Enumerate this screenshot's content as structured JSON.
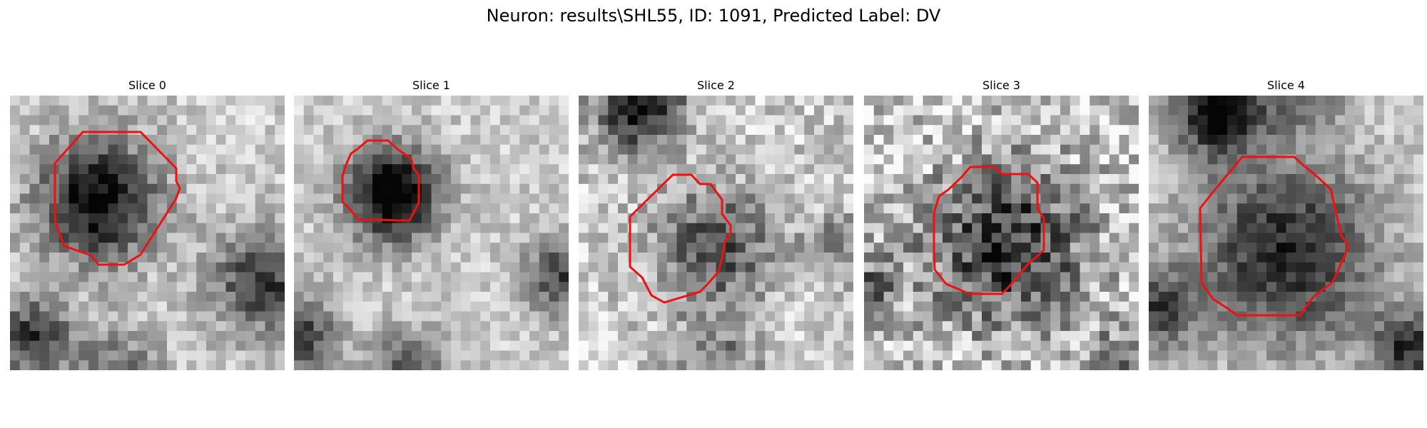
{
  "figure": {
    "suptitle": "Neuron: results\\SHL55, ID: 1091, Predicted Label: DV",
    "contour_color": "#ee1111",
    "panels": [
      {
        "title": "Slice 0"
      },
      {
        "title": "Slice 1"
      },
      {
        "title": "Slice 2"
      },
      {
        "title": "Slice 3"
      },
      {
        "title": "Slice 4"
      }
    ]
  }
}
